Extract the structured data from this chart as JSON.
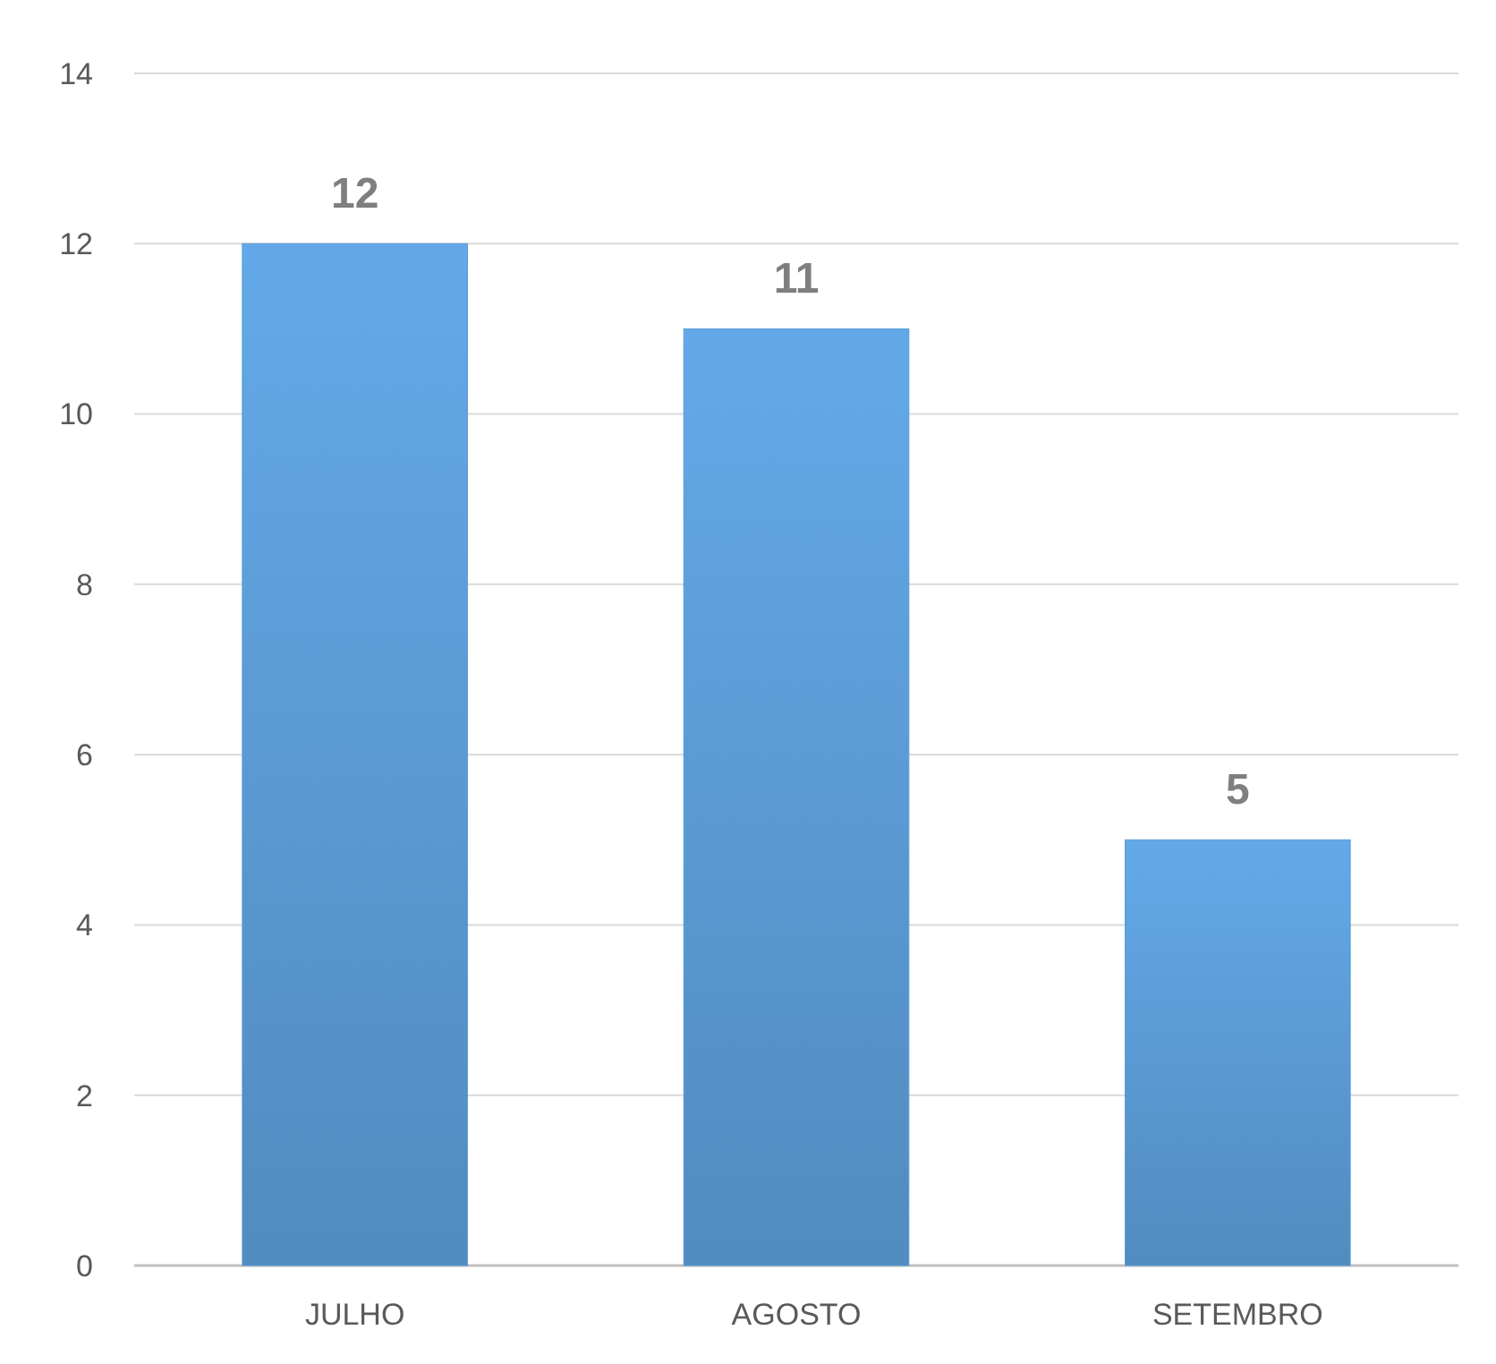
{
  "chart_data": {
    "type": "bar",
    "categories": [
      "JULHO",
      "AGOSTO",
      "SETEMBRO"
    ],
    "values": [
      12,
      11,
      5
    ],
    "color": "#5b9bd5",
    "ylim": [
      0,
      14
    ],
    "yticks": [
      0,
      2,
      4,
      6,
      8,
      10,
      12,
      14
    ],
    "grid": "y",
    "data_labels": true
  }
}
